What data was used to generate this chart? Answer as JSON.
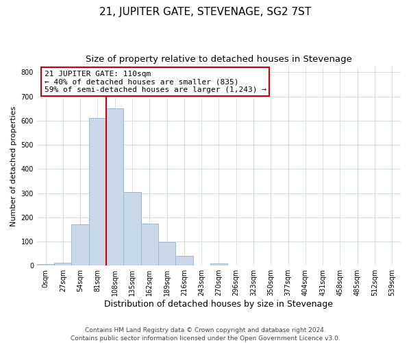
{
  "title": "21, JUPITER GATE, STEVENAGE, SG2 7ST",
  "subtitle": "Size of property relative to detached houses in Stevenage",
  "xlabel": "Distribution of detached houses by size in Stevenage",
  "ylabel": "Number of detached properties",
  "bar_labels": [
    "0sqm",
    "27sqm",
    "54sqm",
    "81sqm",
    "108sqm",
    "135sqm",
    "162sqm",
    "189sqm",
    "216sqm",
    "243sqm",
    "270sqm",
    "296sqm",
    "323sqm",
    "350sqm",
    "377sqm",
    "404sqm",
    "431sqm",
    "458sqm",
    "485sqm",
    "512sqm",
    "539sqm"
  ],
  "bar_heights": [
    5,
    13,
    170,
    612,
    652,
    305,
    175,
    97,
    40,
    1,
    10,
    0,
    0,
    1,
    0,
    0,
    0,
    0,
    0,
    0,
    0
  ],
  "bar_color": "#c8d8e8",
  "bar_edge_color": "#a0b8cc",
  "vline_x_index": 4,
  "vline_color": "#cc0000",
  "annotation_line1": "21 JUPITER GATE: 110sqm",
  "annotation_line2": "← 40% of detached houses are smaller (835)",
  "annotation_line3": "59% of semi-detached houses are larger (1,243) →",
  "annotation_box_color": "#ffffff",
  "annotation_box_edge_color": "#cc0000",
  "ylim": [
    0,
    820
  ],
  "yticks": [
    0,
    100,
    200,
    300,
    400,
    500,
    600,
    700,
    800
  ],
  "footnote": "Contains HM Land Registry data © Crown copyright and database right 2024.\nContains public sector information licensed under the Open Government Licence v3.0.",
  "bg_color": "#ffffff",
  "grid_color": "#d4dde6",
  "title_fontsize": 11,
  "subtitle_fontsize": 9.5,
  "xlabel_fontsize": 9,
  "ylabel_fontsize": 8,
  "tick_fontsize": 7,
  "annotation_fontsize": 8,
  "footnote_fontsize": 6.5
}
